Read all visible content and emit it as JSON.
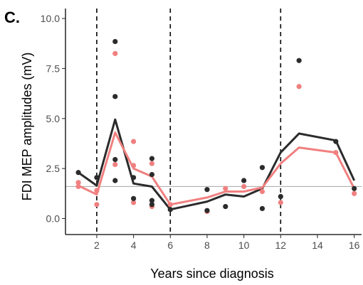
{
  "chart_data": {
    "type": "line",
    "panel_label": "C.",
    "xlabel": "Years since diagnosis",
    "ylabel": "FDI MEP amplitudes (mV)",
    "xlim": [
      0.3,
      16.4
    ],
    "ylim": [
      -0.8,
      10.5
    ],
    "x_ticks": [
      2,
      4,
      6,
      8,
      10,
      12,
      14,
      16
    ],
    "y_ticks": [
      0.0,
      2.5,
      5.0,
      7.5,
      10.0
    ],
    "y_tick_labels": [
      "0.0",
      "2.5",
      "5.0",
      "7.5",
      "10.0"
    ],
    "vlines": [
      2,
      6,
      12
    ],
    "hline": 1.6,
    "grid": false,
    "colors": {
      "dark": "#2b2b2b",
      "pink": "#f08080",
      "hline": "#b0b0b0"
    },
    "series": [
      {
        "key": "dark",
        "color": "#2b2b2b",
        "line": [
          [
            1,
            2.3
          ],
          [
            2,
            1.65
          ],
          [
            3,
            4.95
          ],
          [
            4,
            1.75
          ],
          [
            5,
            1.6
          ],
          [
            6,
            0.45
          ],
          [
            8,
            0.85
          ],
          [
            9,
            1.2
          ],
          [
            10,
            1.1
          ],
          [
            11,
            1.5
          ],
          [
            12,
            3.3
          ],
          [
            13,
            4.25
          ],
          [
            15,
            3.9
          ],
          [
            16,
            1.9
          ]
        ],
        "points": [
          [
            1,
            2.3
          ],
          [
            2,
            2.05
          ],
          [
            3,
            8.85
          ],
          [
            3,
            6.1
          ],
          [
            3,
            2.95
          ],
          [
            3,
            1.9
          ],
          [
            4,
            2.05
          ],
          [
            4,
            1.0
          ],
          [
            5,
            3.0
          ],
          [
            5,
            2.2
          ],
          [
            5,
            0.9
          ],
          [
            5,
            0.7
          ],
          [
            6,
            0.45
          ],
          [
            8,
            1.45
          ],
          [
            8,
            0.4
          ],
          [
            9,
            0.6
          ],
          [
            10,
            1.9
          ],
          [
            11,
            2.55
          ],
          [
            11,
            0.5
          ],
          [
            12,
            1.1
          ],
          [
            13,
            7.9
          ],
          [
            15,
            3.85
          ],
          [
            16,
            1.5
          ]
        ]
      },
      {
        "key": "pink",
        "color": "#f08080",
        "line": [
          [
            1,
            1.65
          ],
          [
            2,
            1.2
          ],
          [
            3,
            4.3
          ],
          [
            4,
            2.5
          ],
          [
            5,
            2.1
          ],
          [
            6,
            0.7
          ],
          [
            8,
            1.05
          ],
          [
            9,
            1.35
          ],
          [
            10,
            1.35
          ],
          [
            11,
            1.55
          ],
          [
            12,
            2.75
          ],
          [
            13,
            3.55
          ],
          [
            15,
            3.3
          ],
          [
            16,
            1.5
          ]
        ],
        "points": [
          [
            1,
            1.8
          ],
          [
            1,
            1.6
          ],
          [
            2,
            1.4
          ],
          [
            2,
            0.7
          ],
          [
            3,
            8.25
          ],
          [
            3,
            2.7
          ],
          [
            4,
            3.85
          ],
          [
            4,
            2.65
          ],
          [
            4,
            0.8
          ],
          [
            5,
            2.75
          ],
          [
            5,
            0.6
          ],
          [
            6,
            0.7
          ],
          [
            8,
            0.35
          ],
          [
            9,
            1.5
          ],
          [
            10,
            1.6
          ],
          [
            11,
            1.35
          ],
          [
            12,
            0.8
          ],
          [
            13,
            6.6
          ],
          [
            15,
            3.3
          ],
          [
            16,
            1.25
          ]
        ]
      }
    ]
  }
}
